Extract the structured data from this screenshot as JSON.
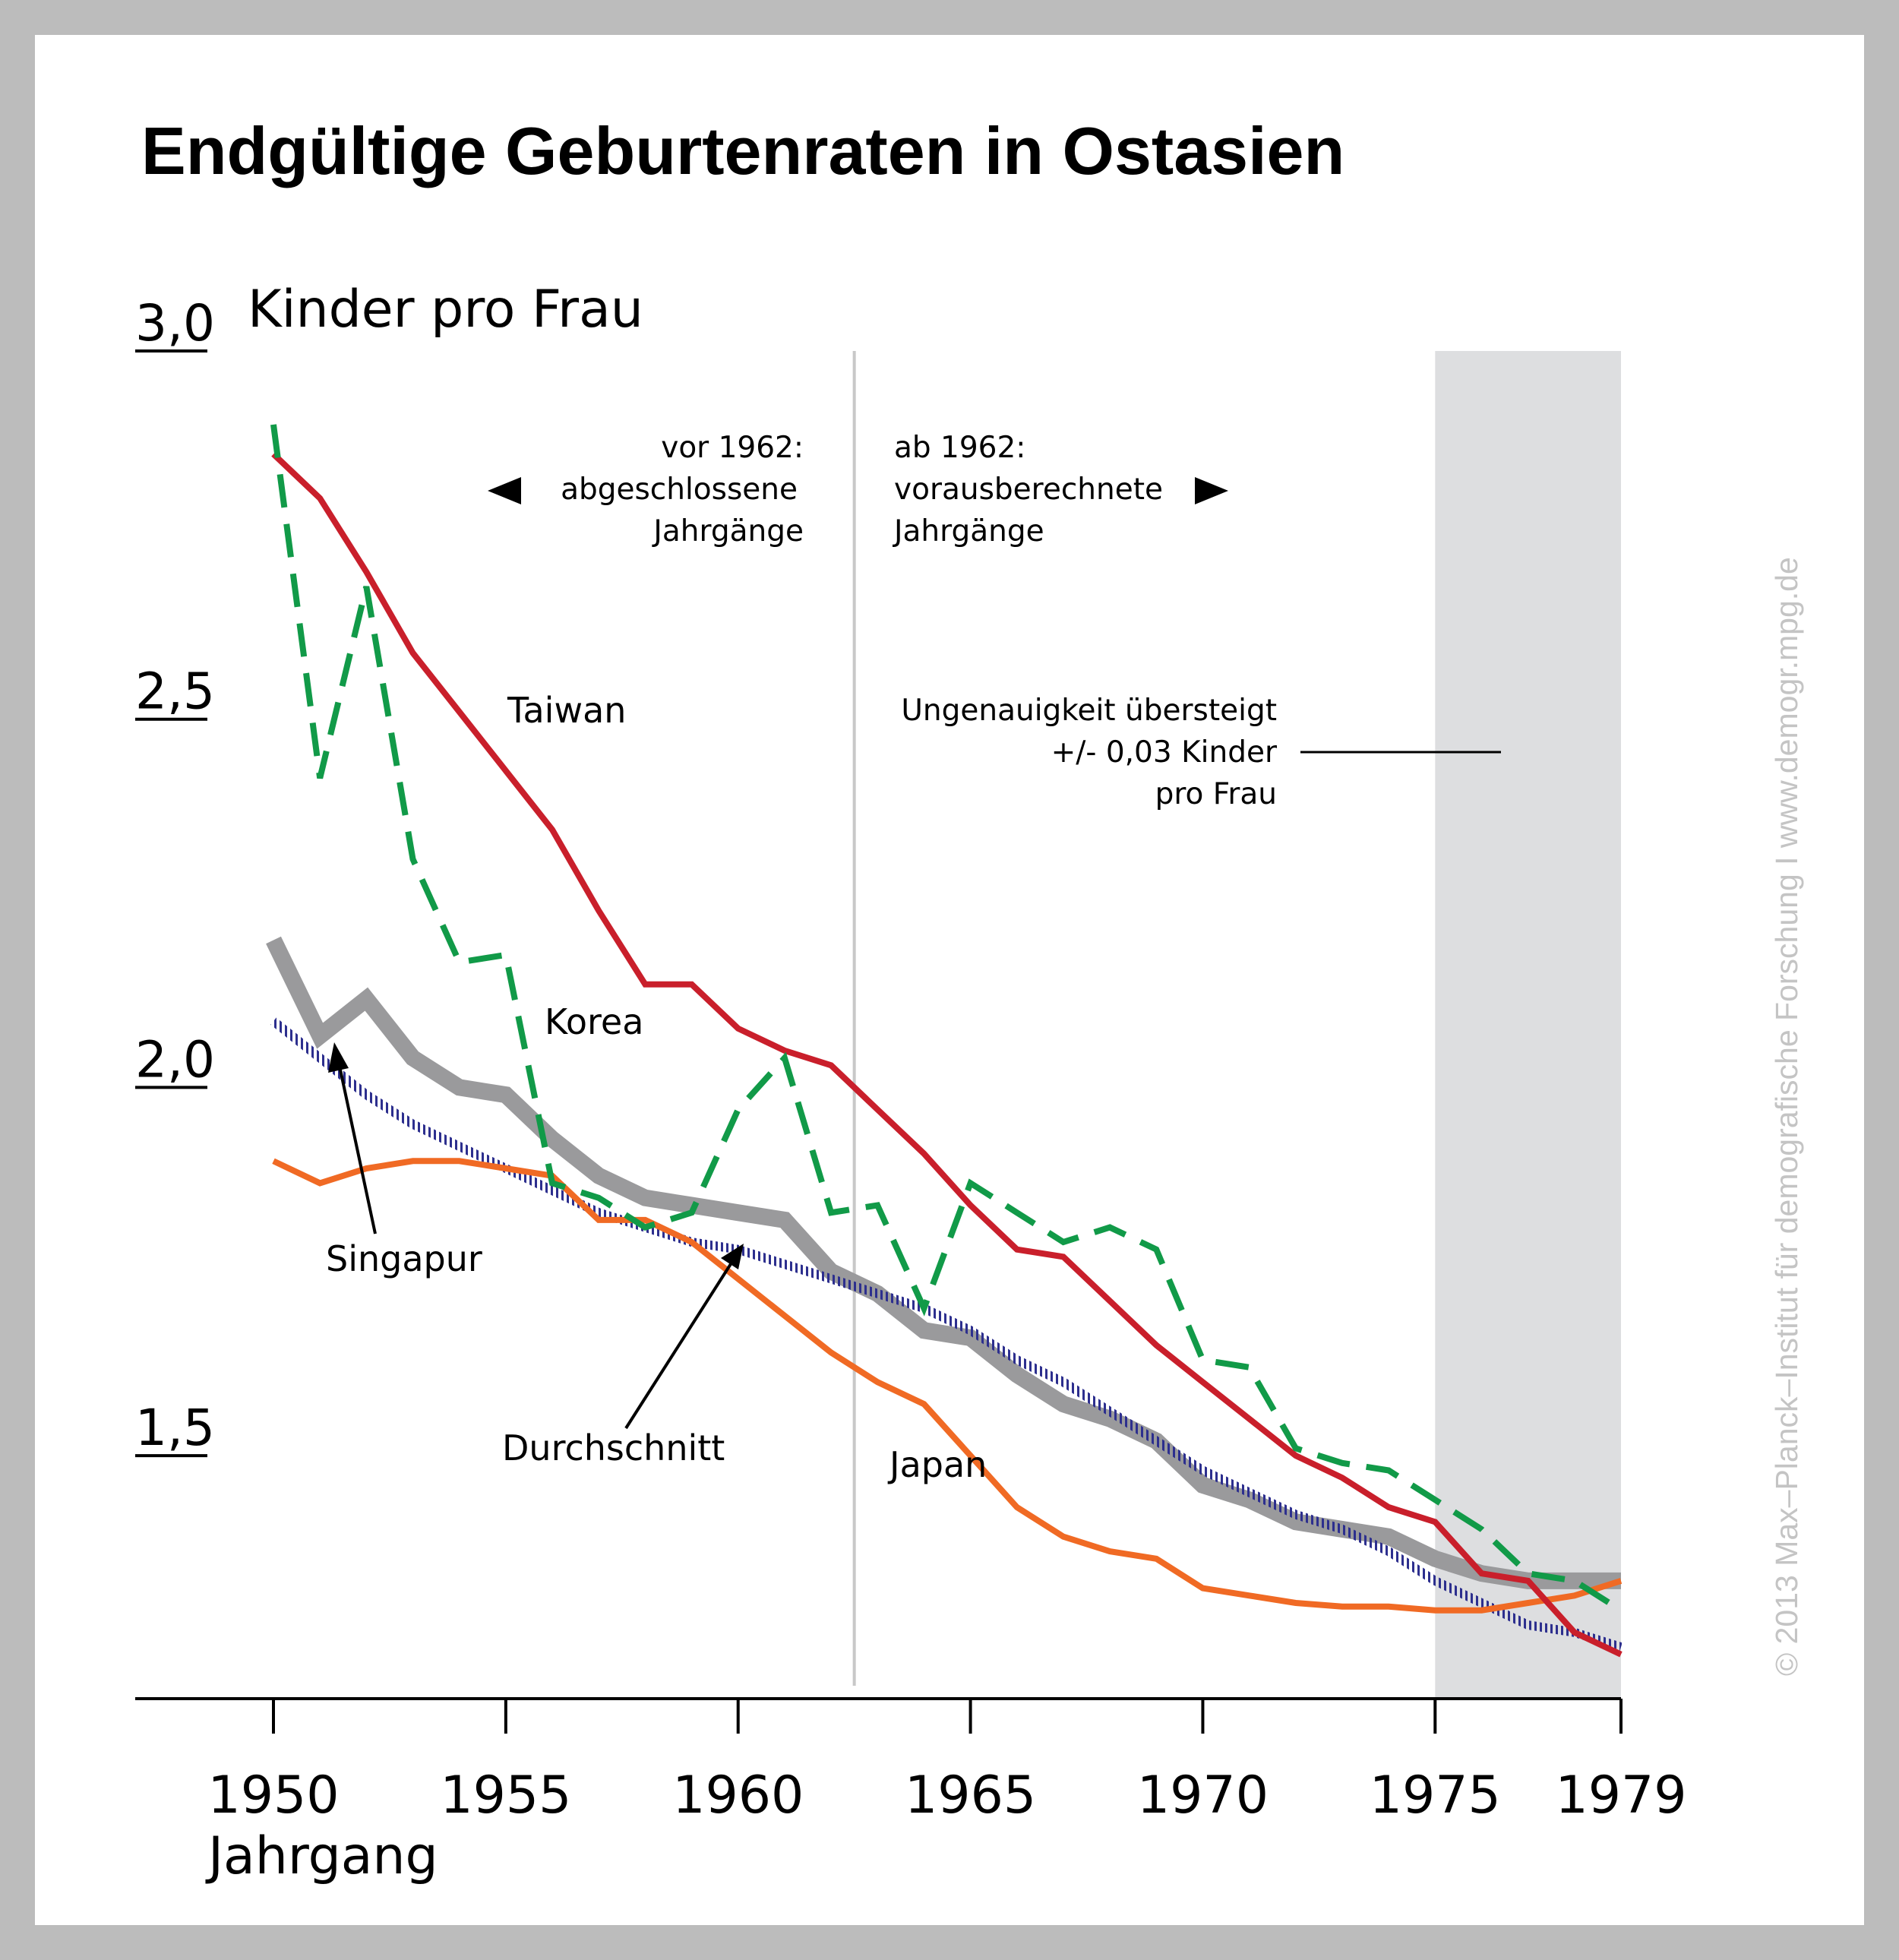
{
  "chart_data": {
    "type": "line",
    "title": "Endgültige Geburtenraten in Ostasien",
    "ylabel": "Kinder pro Frau",
    "xlabel": "Jahrgang",
    "ylim": [
      1.17,
      3.0
    ],
    "xlim": [
      1947,
      1979
    ],
    "yticks": [
      {
        "value": 3.0,
        "label": "3,0"
      },
      {
        "value": 2.5,
        "label": "2,5"
      },
      {
        "value": 2.0,
        "label": "2,0"
      },
      {
        "value": 1.5,
        "label": "1,5"
      }
    ],
    "xticks": [
      {
        "value": 1950,
        "label": "1950"
      },
      {
        "value": 1955,
        "label": "1955"
      },
      {
        "value": 1960,
        "label": "1960"
      },
      {
        "value": 1965,
        "label": "1965"
      },
      {
        "value": 1970,
        "label": "1970"
      },
      {
        "value": 1975,
        "label": "1975"
      },
      {
        "value": 1979,
        "label": "1979"
      }
    ],
    "divider_year": 1962.5,
    "shaded_from": 1975,
    "shaded_to": 1979,
    "annotations": {
      "left_line1": "vor 1962:",
      "left_line2": "abgeschlossene",
      "left_line3": "Jahrgänge",
      "right_line1": "ab 1962:",
      "right_line2": "vorausberechnete",
      "right_line3": "Jahrgänge",
      "inaccuracy_line1": "Ungenauigkeit übersteigt",
      "inaccuracy_line2": "+/- 0,03 Kinder",
      "inaccuracy_line3": "pro Frau",
      "credit": "© 2013 Max–Planck–Institut für demografische Forschung I www.demogr.mpg.de"
    },
    "series": [
      {
        "name": "Taiwan",
        "color": "#c91f2b",
        "style": "solid",
        "x": [
          1950,
          1951,
          1952,
          1953,
          1954,
          1955,
          1956,
          1957,
          1958,
          1959,
          1960,
          1961,
          1962,
          1963,
          1964,
          1965,
          1966,
          1967,
          1968,
          1969,
          1970,
          1971,
          1972,
          1973,
          1974,
          1975,
          1976,
          1977,
          1978,
          1979
        ],
        "values": [
          2.86,
          2.8,
          2.7,
          2.59,
          2.51,
          2.43,
          2.35,
          2.24,
          2.14,
          2.14,
          2.08,
          2.05,
          2.03,
          1.97,
          1.91,
          1.84,
          1.78,
          1.77,
          1.71,
          1.65,
          1.6,
          1.55,
          1.5,
          1.47,
          1.43,
          1.41,
          1.34,
          1.33,
          1.26,
          1.23
        ]
      },
      {
        "name": "Korea",
        "color": "#119a48",
        "style": "dashed",
        "x": [
          1950,
          1951,
          1952,
          1953,
          1954,
          1955,
          1956,
          1957,
          1958,
          1959,
          1960,
          1961,
          1962,
          1963,
          1964,
          1965,
          1966,
          1967,
          1968,
          1969,
          1970,
          1971,
          1972,
          1973,
          1974,
          1975,
          1976,
          1977,
          1978,
          1979
        ],
        "values": [
          2.9,
          2.42,
          2.68,
          2.31,
          2.17,
          2.18,
          1.87,
          1.85,
          1.81,
          1.83,
          1.97,
          2.04,
          1.83,
          1.84,
          1.7,
          1.87,
          1.83,
          1.79,
          1.81,
          1.78,
          1.63,
          1.62,
          1.51,
          1.49,
          1.48,
          1.44,
          1.4,
          1.34,
          1.33,
          1.29
        ]
      },
      {
        "name": "Durchschnitt",
        "color": "#9a9a9c",
        "style": "thick",
        "x": [
          1950,
          1951,
          1952,
          1953,
          1954,
          1955,
          1956,
          1957,
          1958,
          1959,
          1960,
          1961,
          1962,
          1963,
          1964,
          1965,
          1966,
          1967,
          1968,
          1969,
          1970,
          1971,
          1972,
          1973,
          1974,
          1975,
          1976,
          1977,
          1978,
          1979
        ],
        "values": [
          2.2,
          2.07,
          2.12,
          2.04,
          2.0,
          1.99,
          1.93,
          1.88,
          1.85,
          1.84,
          1.83,
          1.82,
          1.75,
          1.72,
          1.67,
          1.66,
          1.61,
          1.57,
          1.55,
          1.52,
          1.46,
          1.44,
          1.41,
          1.4,
          1.39,
          1.36,
          1.34,
          1.33,
          1.33,
          1.33
        ]
      },
      {
        "name": "Singapur",
        "color": "#2d2f8e",
        "style": "hatched",
        "x": [
          1950,
          1951,
          1952,
          1953,
          1954,
          1955,
          1956,
          1957,
          1958,
          1959,
          1960,
          1961,
          1962,
          1963,
          1964,
          1965,
          1966,
          1967,
          1968,
          1969,
          1970,
          1971,
          1972,
          1973,
          1974,
          1975,
          1976,
          1977,
          1978,
          1979
        ],
        "values": [
          2.09,
          2.04,
          1.99,
          1.95,
          1.92,
          1.89,
          1.86,
          1.83,
          1.81,
          1.79,
          1.78,
          1.76,
          1.74,
          1.72,
          1.7,
          1.67,
          1.63,
          1.6,
          1.56,
          1.52,
          1.48,
          1.45,
          1.42,
          1.4,
          1.37,
          1.33,
          1.3,
          1.27,
          1.26,
          1.24
        ]
      },
      {
        "name": "Japan",
        "color": "#f06a24",
        "style": "solid",
        "x": [
          1950,
          1951,
          1952,
          1953,
          1954,
          1955,
          1956,
          1957,
          1958,
          1959,
          1960,
          1961,
          1962,
          1963,
          1964,
          1965,
          1966,
          1967,
          1968,
          1969,
          1970,
          1971,
          1972,
          1973,
          1974,
          1975,
          1976,
          1977,
          1978,
          1979
        ],
        "values": [
          1.9,
          1.87,
          1.89,
          1.9,
          1.9,
          1.89,
          1.88,
          1.82,
          1.82,
          1.79,
          1.74,
          1.69,
          1.64,
          1.6,
          1.57,
          1.5,
          1.43,
          1.39,
          1.37,
          1.36,
          1.32,
          1.31,
          1.3,
          1.295,
          1.295,
          1.29,
          1.29,
          1.3,
          1.31,
          1.33
        ]
      }
    ],
    "series_labels": [
      {
        "series": "Taiwan",
        "text": "Taiwan"
      },
      {
        "series": "Korea",
        "text": "Korea"
      },
      {
        "series": "Durchschnitt",
        "text": "Durchschnitt"
      },
      {
        "series": "Singapur",
        "text": "Singapur"
      },
      {
        "series": "Japan",
        "text": "Japan"
      }
    ]
  }
}
